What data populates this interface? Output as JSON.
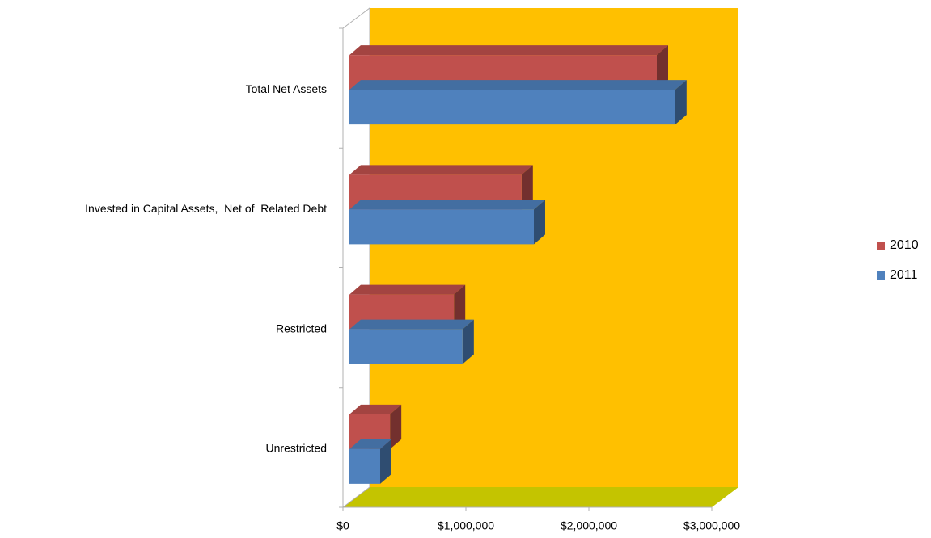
{
  "chart_data": {
    "type": "bar3d_horizontal",
    "categories": [
      "Total Net Assets",
      "Invested in Capital Assets,  Net of  Related Debt",
      "Restricted",
      "Unrestricted"
    ],
    "series": [
      {
        "name": "2010",
        "color": "#c0504d",
        "values": [
          2500000,
          1400000,
          850000,
          330000
        ]
      },
      {
        "name": "2011",
        "color": "#4f81bd",
        "values": [
          2650000,
          1500000,
          920000,
          250000
        ]
      }
    ],
    "xlim": [
      0,
      3000000
    ],
    "xticks": [
      {
        "value": 0,
        "label": "$0"
      },
      {
        "value": 1000000,
        "label": "$1,000,000"
      },
      {
        "value": 2000000,
        "label": "$2,000,000"
      },
      {
        "value": 3000000,
        "label": "$3,000,000"
      }
    ],
    "wall_color": "#ffc000",
    "floor_color": "#c4c400",
    "legend": "right"
  }
}
